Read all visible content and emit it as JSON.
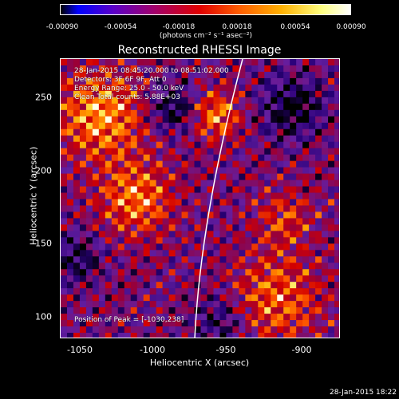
{
  "colorbar": {
    "tick_labels": [
      "-0.00090",
      "-0.00054",
      "-0.00018",
      "0.00018",
      "0.00054",
      "0.00090"
    ],
    "units": "(photons cm⁻² s⁻¹ asec⁻²)"
  },
  "title": "Reconstructed RHESSI Image",
  "annotations": {
    "time_range": "28-Jan-2015 08:45:20.000 to 08:51:02.000",
    "detectors": "Detectors: 3F 6F 9F, Att 0",
    "energy": "Energy Range: 25.0 - 50.0 keV",
    "method": "Clean     Total counts: 5.88E+03",
    "peak": "Position of Peak = [-1030,238]"
  },
  "axes": {
    "x_label": "Heliocentric X (arcsec)",
    "y_label": "Heliocentric Y (arcsec)",
    "x_ticks": [
      "-1050",
      "-1000",
      "-950",
      "-900"
    ],
    "y_ticks": [
      "250",
      "200",
      "150",
      "100"
    ],
    "x_range": [
      -1063,
      -875
    ],
    "y_range": [
      85,
      275
    ]
  },
  "timestamp": "28-Jan-2015 18:22",
  "colors": {
    "background": "#000000",
    "limb_line": "#ffffff"
  }
}
